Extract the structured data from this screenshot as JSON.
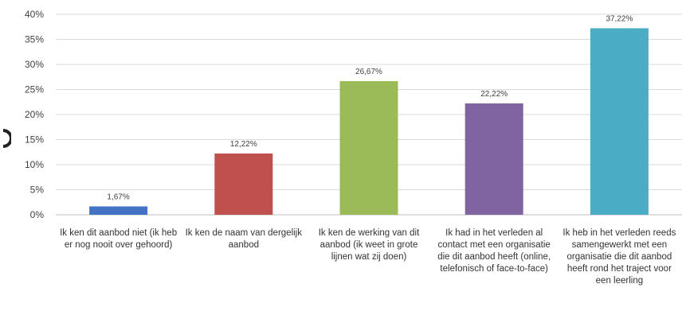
{
  "chart_data": {
    "type": "bar",
    "title": "",
    "xlabel": "",
    "ylabel": "",
    "ylim": [
      0,
      40
    ],
    "yticks": [
      "0%",
      "5%",
      "10%",
      "15%",
      "20%",
      "25%",
      "30%",
      "35%",
      "40%"
    ],
    "ytick_values": [
      0,
      5,
      10,
      15,
      20,
      25,
      30,
      35,
      40
    ],
    "grid": true,
    "legend": "none",
    "categories": [
      "Ik ken dit aanbod niet (ik heb er nog nooit over gehoord)",
      "Ik ken de naam van dergelijk aanbod",
      "Ik ken de werking van dit aanbod (ik weet in grote lijnen wat zij doen)",
      "Ik had in het verleden al contact met een organisatie die dit aanbod heeft (online, telefonisch of face-to-face)",
      "Ik heb in het verleden reeds samengewerkt met een organisatie die dit aanbod heeft rond het traject voor een leerling"
    ],
    "values": [
      1.67,
      12.22,
      26.67,
      22.22,
      37.22
    ],
    "data_labels": [
      "1,67%",
      "12,22%",
      "26,67%",
      "22,22%",
      "37,22%"
    ],
    "colors": [
      "#4472C4",
      "#C0504D",
      "#9BBB59",
      "#8064A2",
      "#4BACC6"
    ]
  }
}
